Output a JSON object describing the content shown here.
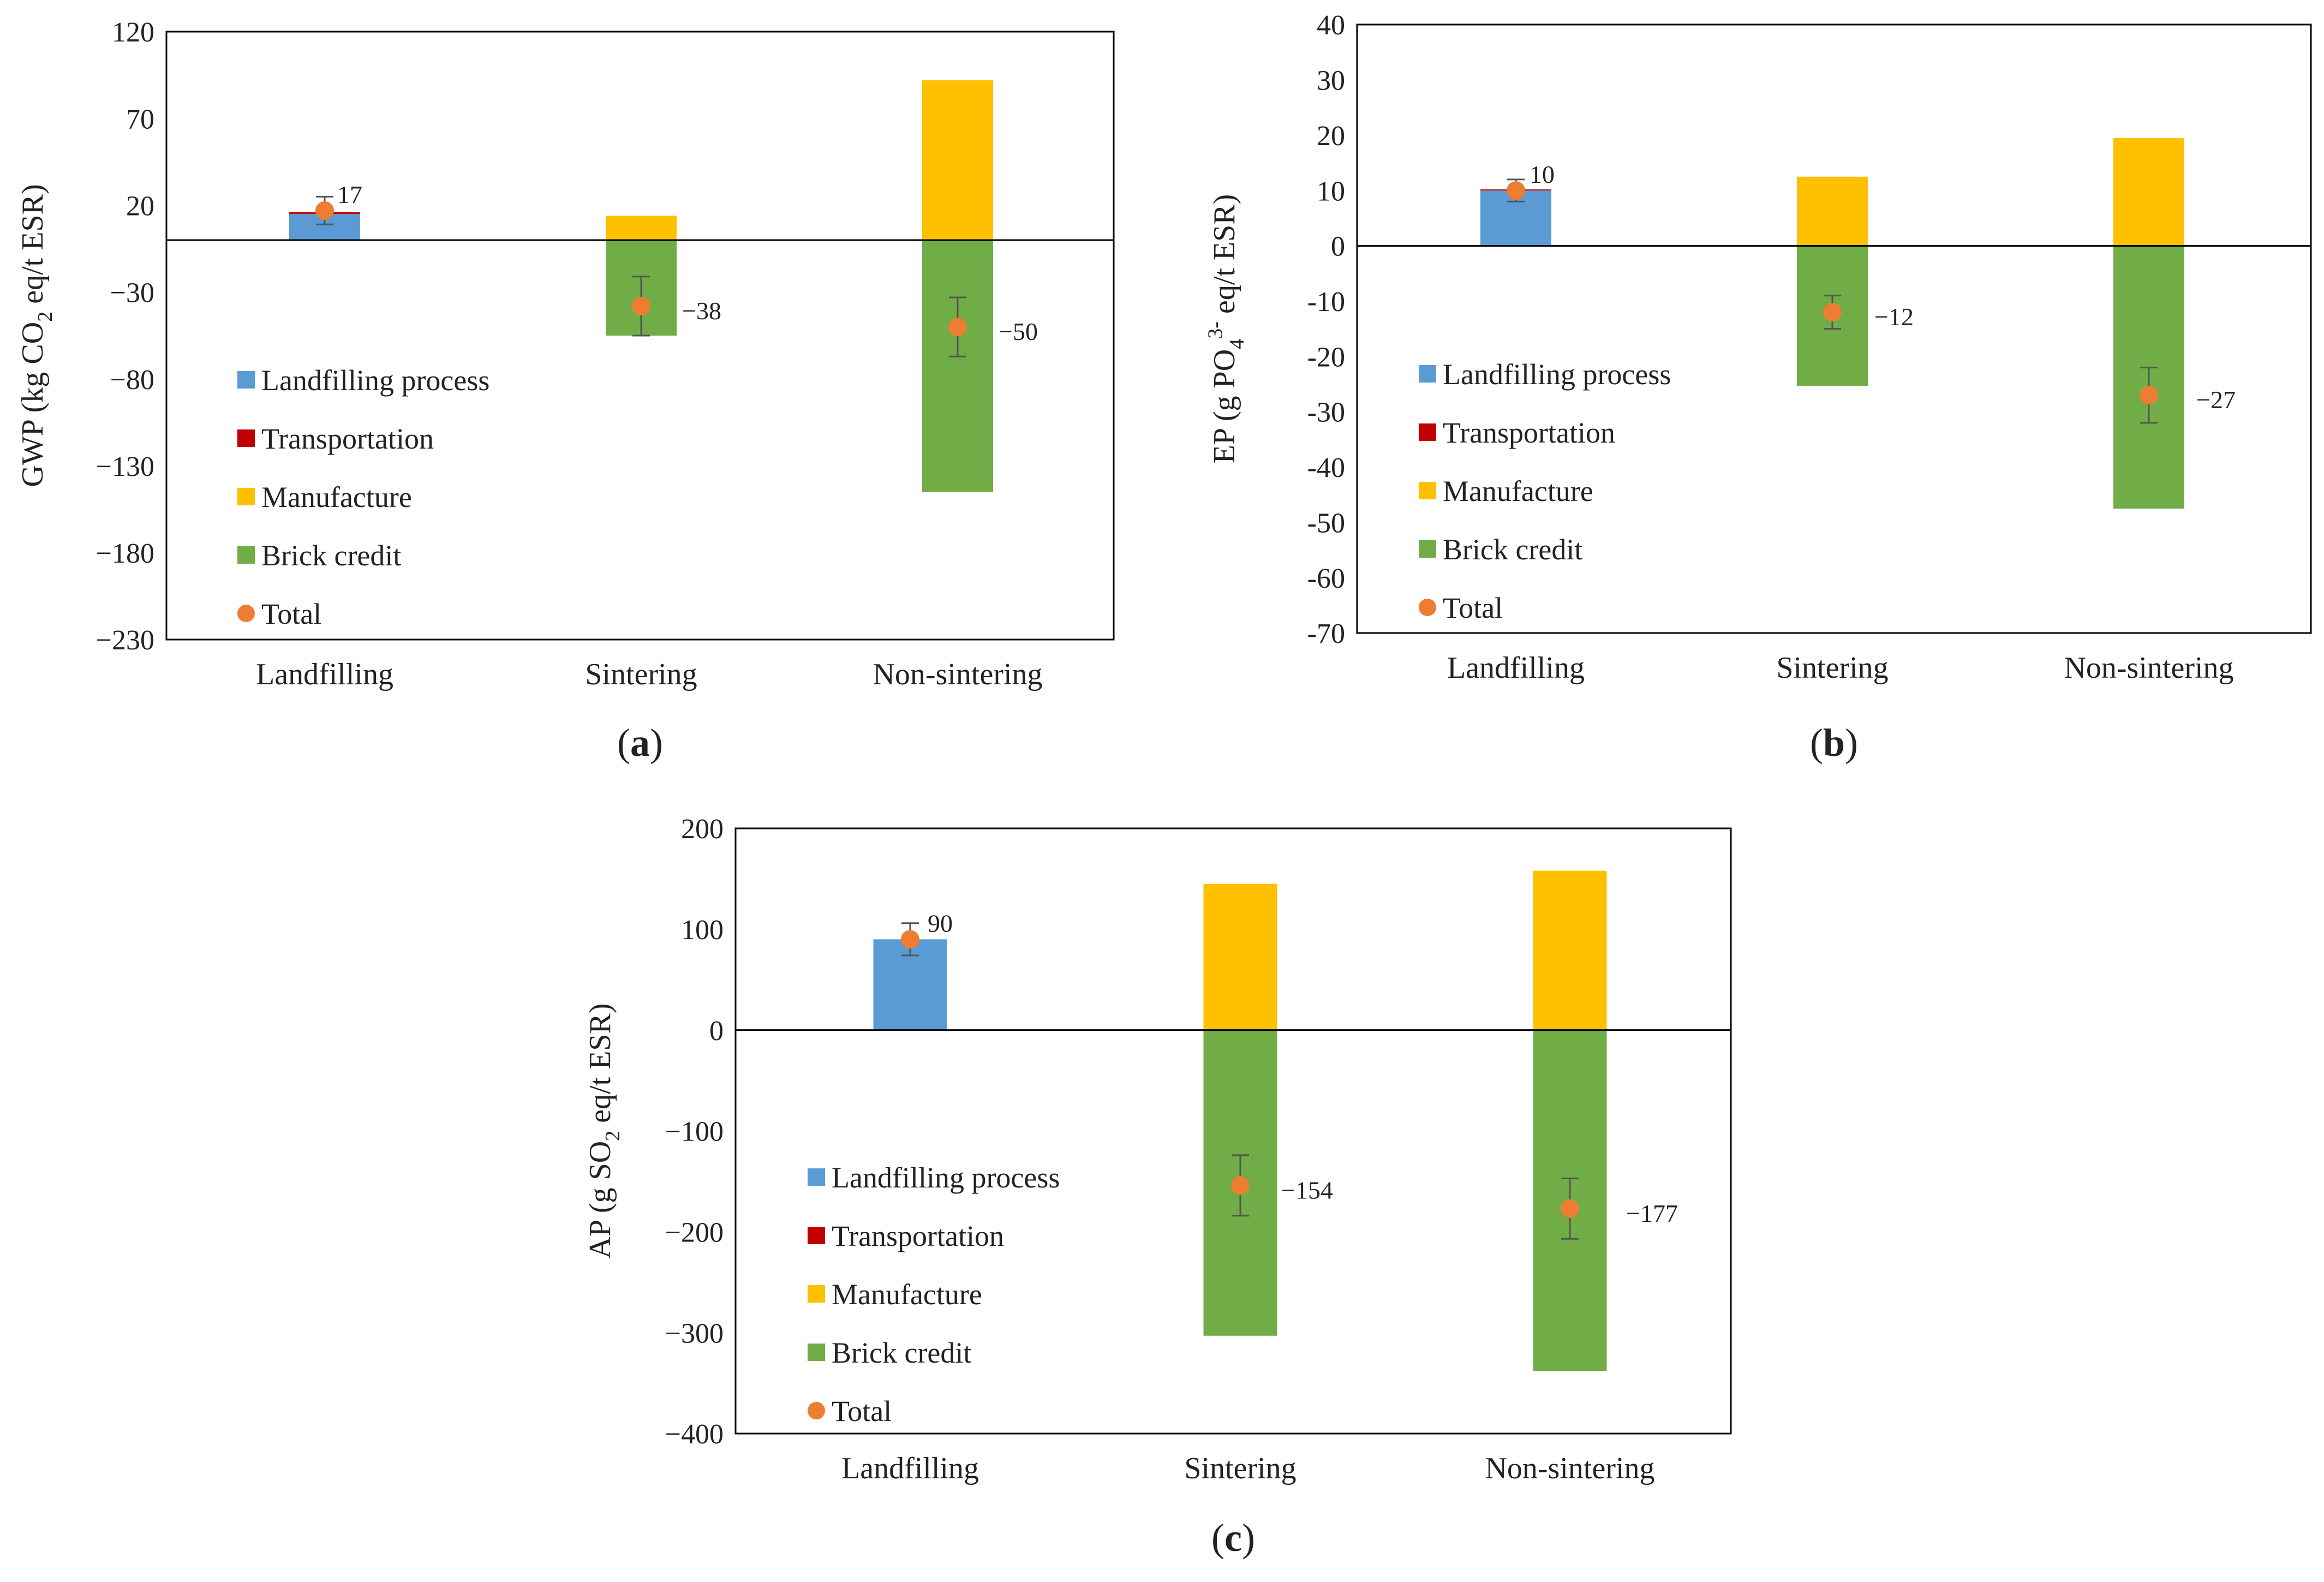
{
  "chart_data": [
    {
      "type": "bar",
      "panel_label": "a",
      "categories": [
        "Landfilling",
        "Sintering",
        "Non-sintering"
      ],
      "ylabel": "GWP (kg CO2 eq/t ESR)",
      "ylabel_parts": {
        "before": "GWP (kg CO",
        "sub": "2",
        "sup": "",
        "after": " eq/t ESR)"
      },
      "ylim": [
        -230,
        120
      ],
      "yticks": [
        120,
        70,
        20,
        -30,
        -80,
        -130,
        -180,
        -230
      ],
      "ytick_labels": [
        "120",
        "70",
        "20",
        "−30",
        "−80",
        "−130",
        "−180",
        "−230"
      ],
      "series": [
        {
          "name": "Landfilling process",
          "values": [
            15,
            0,
            0
          ]
        },
        {
          "name": "Transportation",
          "values": [
            1,
            0,
            0
          ]
        },
        {
          "name": "Manufacture",
          "values": [
            0,
            14,
            92
          ]
        },
        {
          "name": "Brick credit",
          "values": [
            0,
            -55,
            -145
          ]
        }
      ],
      "total": {
        "name": "Total",
        "values": [
          17,
          -38,
          -50
        ],
        "error": [
          8,
          17,
          17
        ]
      },
      "total_labels": [
        "17",
        "−38",
        "−50"
      ],
      "legend": [
        "Landfilling process",
        "Transportation",
        "Manufacture",
        "Brick credit",
        "Total"
      ]
    },
    {
      "type": "bar",
      "panel_label": "b",
      "categories": [
        "Landfilling",
        "Sintering",
        "Non-sintering"
      ],
      "ylabel": "EP (g PO43- eq/t ESR)",
      "ylabel_parts": {
        "before": "EP (g PO",
        "sub": "4",
        "sup": "3-",
        "after": " eq/t ESR)"
      },
      "ylim": [
        -70,
        40
      ],
      "yticks": [
        40,
        30,
        20,
        10,
        0,
        -10,
        -20,
        -30,
        -40,
        -50,
        -60,
        -70
      ],
      "ytick_labels": [
        "40",
        "30",
        "20",
        "10",
        "0",
        "-10",
        "-20",
        "-30",
        "-40",
        "-50",
        "-60",
        "-70"
      ],
      "series": [
        {
          "name": "Landfilling process",
          "values": [
            10,
            0,
            0
          ]
        },
        {
          "name": "Transportation",
          "values": [
            0.2,
            0,
            0
          ]
        },
        {
          "name": "Manufacture",
          "values": [
            0,
            12.5,
            19.5
          ]
        },
        {
          "name": "Brick credit",
          "values": [
            0,
            -25.3,
            -47.5
          ]
        }
      ],
      "total": {
        "name": "Total",
        "values": [
          10,
          -12,
          -27
        ],
        "error": [
          2,
          3,
          5
        ]
      },
      "total_labels": [
        "10",
        "−12",
        "−27"
      ],
      "legend": [
        "Landfilling process",
        "Transportation",
        "Manufacture",
        "Brick credit",
        "Total"
      ]
    },
    {
      "type": "bar",
      "panel_label": "c",
      "categories": [
        "Landfilling",
        "Sintering",
        "Non-sintering"
      ],
      "ylabel": "AP (g SO2 eq/t ESR)",
      "ylabel_parts": {
        "before": "AP (g SO",
        "sub": "2",
        "sup": "",
        "after": " eq/t ESR)"
      },
      "ylim": [
        -400,
        200
      ],
      "yticks": [
        200,
        100,
        0,
        -100,
        -200,
        -300,
        -400
      ],
      "ytick_labels": [
        "200",
        "100",
        "0",
        "−100",
        "−200",
        "−300",
        "−400"
      ],
      "series": [
        {
          "name": "Landfilling process",
          "values": [
            90,
            0,
            0
          ]
        },
        {
          "name": "Transportation",
          "values": [
            0,
            0,
            0
          ]
        },
        {
          "name": "Manufacture",
          "values": [
            0,
            145,
            158
          ]
        },
        {
          "name": "Brick credit",
          "values": [
            0,
            -303,
            -338
          ]
        }
      ],
      "total": {
        "name": "Total",
        "values": [
          90,
          -154,
          -177
        ],
        "error": [
          16,
          30,
          30
        ]
      },
      "total_labels": [
        "90",
        "−154",
        "−177"
      ],
      "legend": [
        "Landfilling process",
        "Transportation",
        "Manufacture",
        "Brick credit",
        "Total"
      ]
    }
  ],
  "colors": {
    "Landfilling process": "#5B9BD5",
    "Transportation": "#C00000",
    "Manufacture": "#FFC000",
    "Brick credit": "#70AD47",
    "Total": "#ED7D31",
    "errorbar": "#555555",
    "axis": "#000000"
  }
}
